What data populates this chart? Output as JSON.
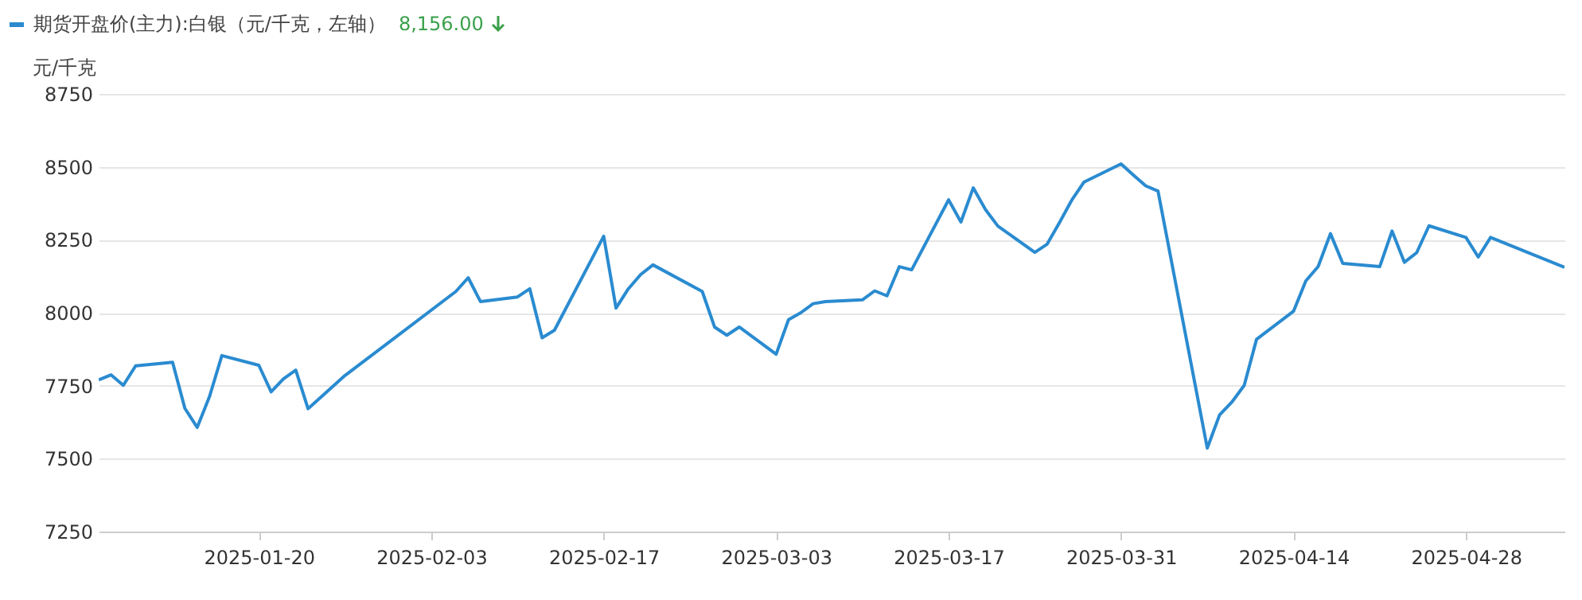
{
  "chart_data": {
    "type": "line",
    "ylabel": "元/千克",
    "annotations": [
      "8,156.00"
    ],
    "x": [
      "2025-01-07",
      "2025-01-08",
      "2025-01-09",
      "2025-01-10",
      "2025-01-13",
      "2025-01-14",
      "2025-01-15",
      "2025-01-16",
      "2025-01-17",
      "2025-01-20",
      "2025-01-21",
      "2025-01-22",
      "2025-01-23",
      "2025-01-24",
      "2025-01-27",
      "2025-02-05",
      "2025-02-06",
      "2025-02-07",
      "2025-02-10",
      "2025-02-11",
      "2025-02-12",
      "2025-02-13",
      "2025-02-17",
      "2025-02-18",
      "2025-02-19",
      "2025-02-20",
      "2025-02-21",
      "2025-02-25",
      "2025-02-26",
      "2025-02-27",
      "2025-02-28",
      "2025-03-03",
      "2025-03-04",
      "2025-03-05",
      "2025-03-06",
      "2025-03-07",
      "2025-03-10",
      "2025-03-11",
      "2025-03-12",
      "2025-03-13",
      "2025-03-14",
      "2025-03-17",
      "2025-03-18",
      "2025-03-19",
      "2025-03-20",
      "2025-03-21",
      "2025-03-24",
      "2025-03-25",
      "2025-03-26",
      "2025-03-27",
      "2025-03-28",
      "2025-03-31",
      "2025-04-01",
      "2025-04-02",
      "2025-04-03",
      "2025-04-07",
      "2025-04-08",
      "2025-04-09",
      "2025-04-10",
      "2025-04-11",
      "2025-04-14",
      "2025-04-15",
      "2025-04-16",
      "2025-04-17",
      "2025-04-18",
      "2025-04-21",
      "2025-04-22",
      "2025-04-23",
      "2025-04-24",
      "2025-04-25",
      "2025-04-28",
      "2025-04-29",
      "2025-04-30",
      "2025-05-06"
    ],
    "series": [
      {
        "name": "期货开盘价(主力):白银（元/千克，左轴）",
        "color": "#2a8bd0",
        "values": [
          7770,
          7787,
          7751,
          7818,
          7830,
          7672,
          7607,
          7713,
          7853,
          7820,
          7729,
          7773,
          7803,
          7671,
          7785,
          8073,
          8120,
          8038,
          8054,
          8082,
          7914,
          7940,
          8262,
          8016,
          8082,
          8131,
          8164,
          8073,
          7951,
          7923,
          7951,
          7858,
          7976,
          8000,
          8031,
          8038,
          8044,
          8075,
          8058,
          8158,
          8147,
          8387,
          8311,
          8428,
          8353,
          8297,
          8207,
          8235,
          8309,
          8386,
          8448,
          8510,
          8472,
          8435,
          8417,
          7536,
          7650,
          7694,
          7751,
          7909,
          8005,
          8109,
          8158,
          8271,
          8169,
          8158,
          8280,
          8173,
          8206,
          8298,
          8258,
          8191,
          8258,
          8156
        ]
      }
    ],
    "xlim": [
      "2025-01-07",
      "2025-05-06"
    ],
    "xticks": [
      "2025-01-20",
      "2025-02-03",
      "2025-02-17",
      "2025-03-03",
      "2025-03-17",
      "2025-03-31",
      "2025-04-14",
      "2025-04-28"
    ],
    "ylim": [
      7250,
      8750
    ],
    "yticks": [
      7250,
      7500,
      7750,
      8000,
      8250,
      8500,
      8750
    ],
    "grid": "y",
    "legend": "top left"
  }
}
